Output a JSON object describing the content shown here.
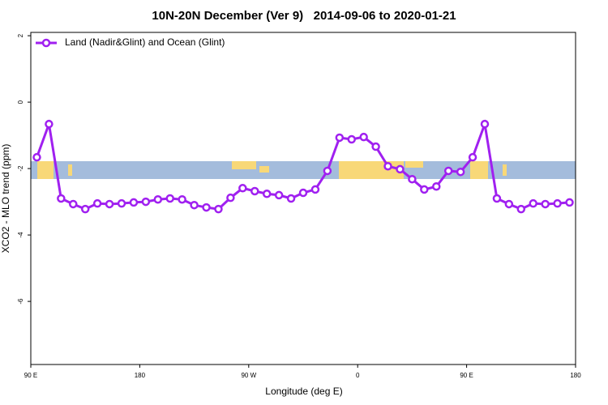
{
  "chart_data": {
    "type": "line",
    "title": "10N-20N December (Ver 9)   2014-09-06 to 2020-01-21",
    "x_label": "Longitude (deg E)",
    "y_label": "XCO2 - MLO trend (ppm)",
    "x": [
      95,
      105,
      115,
      125,
      135,
      145,
      155,
      165,
      175,
      185,
      195,
      205,
      215,
      225,
      235,
      245,
      255,
      265,
      275,
      285,
      295,
      305,
      315,
      325,
      335,
      345,
      355,
      365,
      375,
      385,
      395,
      405,
      415,
      425,
      435,
      445,
      455,
      465,
      475,
      485,
      495,
      505,
      515,
      525,
      535
    ],
    "series": [
      {
        "name": "Land (Nadir&Glint) and Ocean (Glint)",
        "color": "#a020f0",
        "values": [
          -1.66,
          -0.66,
          -2.9,
          -3.07,
          -3.22,
          -3.05,
          -3.07,
          -3.05,
          -3.02,
          -3.0,
          -2.93,
          -2.9,
          -2.93,
          -3.1,
          -3.17,
          -3.22,
          -2.88,
          -2.59,
          -2.68,
          -2.76,
          -2.8,
          -2.9,
          -2.73,
          -2.63,
          -2.07,
          -1.07,
          -1.12,
          -1.05,
          -1.34,
          -1.93,
          -2.02,
          -2.32,
          -2.63,
          -2.54,
          -2.07,
          -2.1,
          -1.66,
          -0.66,
          -2.9,
          -3.07,
          -3.22,
          -3.05,
          -3.07,
          -3.05,
          -3.02
        ]
      }
    ],
    "xlim": [
      90,
      540
    ],
    "xticks": [
      {
        "value": 90,
        "label": "90 E"
      },
      180,
      {
        "value": 270,
        "label": "90 W"
      },
      {
        "value": 360,
        "label": "0"
      },
      {
        "value": 450,
        "label": "90 E"
      },
      {
        "value": 540,
        "label": "180"
      }
    ],
    "ylim": [
      -7.9,
      2.1
    ],
    "yticks": [
      2,
      0,
      -2,
      -4,
      -6
    ],
    "legend": "top-left"
  }
}
